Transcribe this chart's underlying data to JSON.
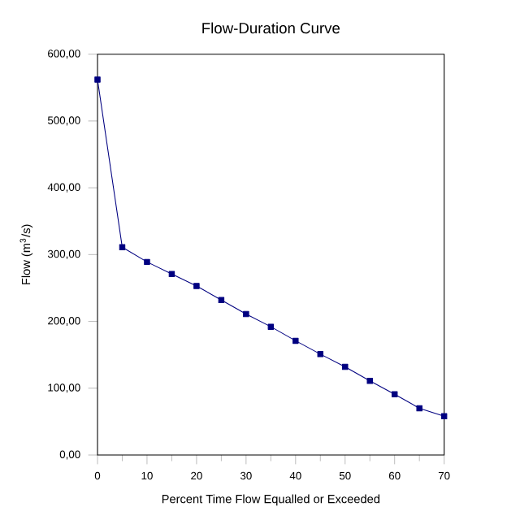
{
  "chart_data": {
    "type": "line",
    "title": "Flow-Duration Curve",
    "xlabel": "Percent Time Flow Equalled or Exceeded",
    "ylabel": "Flow (m$^{3}$/s)",
    "x": [
      0,
      5,
      10,
      15,
      20,
      25,
      30,
      35,
      40,
      45,
      50,
      55,
      60,
      65,
      70
    ],
    "series": [
      {
        "color": "#000080",
        "values": [
          562,
          311,
          289,
          271,
          253,
          232,
          211,
          192,
          171,
          151,
          132,
          111,
          91,
          70,
          58
        ]
      }
    ],
    "xlim": [
      0,
      70
    ],
    "xticks": [
      0,
      10,
      20,
      30,
      40,
      50,
      60,
      70
    ],
    "ylim": [
      0,
      600
    ],
    "yticks": [
      {
        "value": 0,
        "label": "0,00"
      },
      {
        "value": 100,
        "label": "100,00"
      },
      {
        "value": 200,
        "label": "200,00"
      },
      {
        "value": 300,
        "label": "300,00"
      },
      {
        "value": 400,
        "label": "400,00"
      },
      {
        "value": 500,
        "label": "500,00"
      },
      {
        "value": 600,
        "label": "600,00"
      }
    ],
    "marker": "square",
    "line_style": "solid",
    "grid": false
  }
}
